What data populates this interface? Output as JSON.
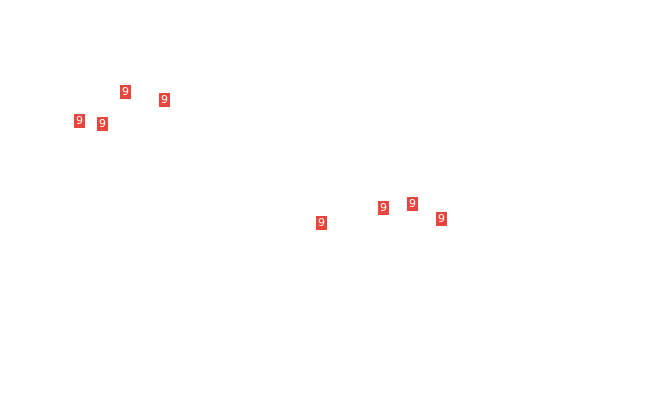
{
  "marker_color": "#e8453c",
  "markers": [
    {
      "label": "9"
    },
    {
      "label": "9"
    },
    {
      "label": "9"
    },
    {
      "label": "9"
    },
    {
      "label": "9"
    },
    {
      "label": "9"
    },
    {
      "label": "9"
    },
    {
      "label": "9"
    }
  ]
}
